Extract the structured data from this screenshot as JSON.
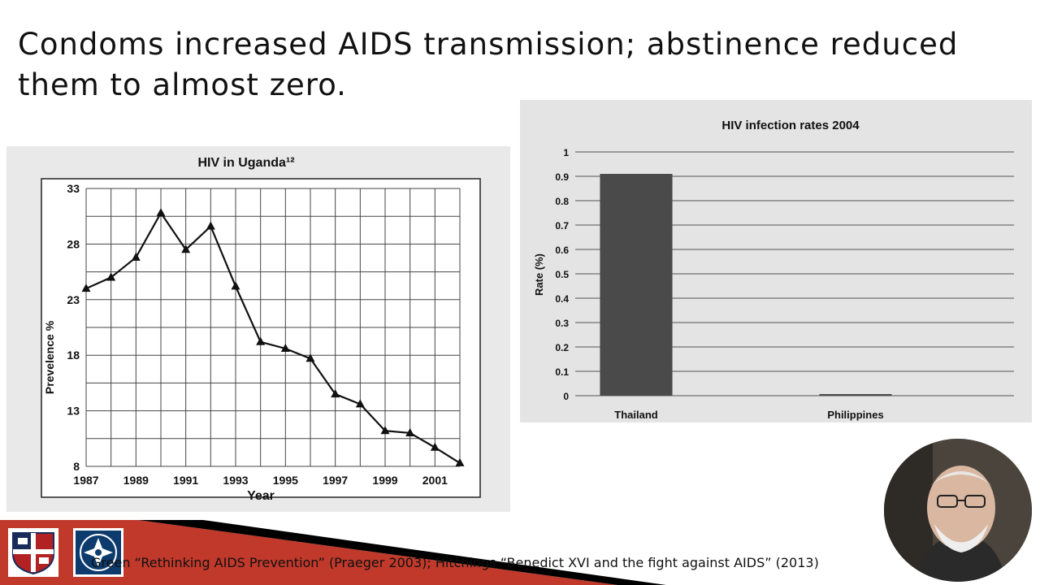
{
  "slide": {
    "title_line1": "Condoms increased AIDS transmission; abstinence reduced",
    "title_line2": "them to almost zero."
  },
  "footer": {
    "citation": "Green “Rethinking AIDS Prevention” (Praeger 2003);  Hitchings “Benedict XVI and the fight against AIDS” (2013)",
    "accent_color": "#c0392b",
    "band_color": "#000000"
  },
  "logos": [
    {
      "icon": "university-shield-icon"
    },
    {
      "icon": "cross-emblem-icon"
    }
  ],
  "webcam": {
    "icon": "presenter-video-icon"
  },
  "chart_data": [
    {
      "type": "line",
      "title": "HIV in Uganda¹²",
      "xlabel": "Year",
      "ylabel": "Prevelence %",
      "x": [
        1987,
        1988,
        1989,
        1990,
        1991,
        1992,
        1993,
        1994,
        1995,
        1996,
        1997,
        1998,
        1999,
        2000,
        2001,
        2002
      ],
      "y": [
        24.0,
        25.0,
        26.8,
        30.8,
        27.5,
        29.6,
        24.2,
        19.2,
        18.6,
        17.7,
        14.5,
        13.6,
        11.2,
        11.0,
        9.7,
        8.3
      ],
      "xlim": [
        1987,
        2002
      ],
      "ylim": [
        8,
        33
      ],
      "xticks": [
        "1987",
        "1989",
        "1991",
        "1993",
        "1995",
        "1997",
        "1999",
        "2001"
      ],
      "yticks": [
        "33",
        "28",
        "23",
        "18",
        "13",
        "8"
      ],
      "grid": true,
      "marker": "triangle",
      "color": "#111111"
    },
    {
      "type": "bar",
      "title": "HIV infection rates 2004",
      "xlabel": "",
      "ylabel": "Rate (%)",
      "categories": [
        "Thailand",
        "Philippines"
      ],
      "values": [
        0.91,
        0.005
      ],
      "ylim": [
        0,
        1
      ],
      "yticks": [
        "0",
        "0.1",
        "0.2",
        "0.3",
        "0.4",
        "0.5",
        "0.6",
        "0.7",
        "0.8",
        "0.9",
        "1"
      ],
      "grid": true,
      "color": "#4a4a4a"
    }
  ]
}
